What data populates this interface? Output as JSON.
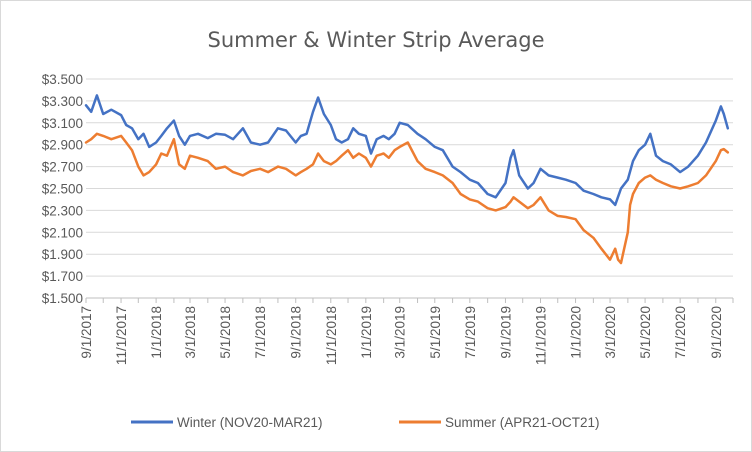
{
  "chart_data": {
    "type": "line",
    "title": "Summer & Winter Strip Average",
    "xlabel": "",
    "ylabel": "",
    "ylim": [
      1.5,
      3.5
    ],
    "y_ticks": [
      1.5,
      1.7,
      1.9,
      2.1,
      2.3,
      2.5,
      2.7,
      2.9,
      3.1,
      3.3,
      3.5
    ],
    "y_tick_labels": [
      "$1.500",
      "$1.700",
      "$1.900",
      "$2.100",
      "$2.300",
      "$2.500",
      "$2.700",
      "$2.900",
      "$3.100",
      "$3.300",
      "$3.500"
    ],
    "x_range": [
      "2017-09-01",
      "2020-10-01"
    ],
    "x_tick_labels": [
      "9/1/2017",
      "11/1/2017",
      "1/1/2018",
      "3/1/2018",
      "5/1/2018",
      "7/1/2018",
      "9/1/2018",
      "11/1/2018",
      "1/1/2019",
      "3/1/2019",
      "5/1/2019",
      "7/1/2019",
      "9/1/2019",
      "11/1/2019",
      "1/1/2020",
      "3/1/2020",
      "5/1/2020",
      "7/1/2020",
      "9/1/2020"
    ],
    "grid": true,
    "legend_position": "bottom",
    "series": [
      {
        "name": "Winter (NOV20-MAR21)",
        "color": "#4472c4",
        "points": [
          [
            "2017-09-01",
            3.26
          ],
          [
            "2017-09-10",
            3.2
          ],
          [
            "2017-09-20",
            3.35
          ],
          [
            "2017-10-01",
            3.18
          ],
          [
            "2017-10-15",
            3.22
          ],
          [
            "2017-11-01",
            3.17
          ],
          [
            "2017-11-10",
            3.08
          ],
          [
            "2017-11-20",
            3.05
          ],
          [
            "2017-12-01",
            2.95
          ],
          [
            "2017-12-10",
            3.0
          ],
          [
            "2017-12-20",
            2.88
          ],
          [
            "2018-01-01",
            2.92
          ],
          [
            "2018-01-10",
            2.98
          ],
          [
            "2018-01-20",
            3.05
          ],
          [
            "2018-02-01",
            3.12
          ],
          [
            "2018-02-10",
            2.98
          ],
          [
            "2018-02-20",
            2.9
          ],
          [
            "2018-03-01",
            2.98
          ],
          [
            "2018-03-15",
            3.0
          ],
          [
            "2018-04-01",
            2.96
          ],
          [
            "2018-04-15",
            3.0
          ],
          [
            "2018-05-01",
            2.99
          ],
          [
            "2018-05-15",
            2.95
          ],
          [
            "2018-06-01",
            3.05
          ],
          [
            "2018-06-15",
            2.92
          ],
          [
            "2018-07-01",
            2.9
          ],
          [
            "2018-07-15",
            2.92
          ],
          [
            "2018-08-01",
            3.05
          ],
          [
            "2018-08-15",
            3.03
          ],
          [
            "2018-09-01",
            2.92
          ],
          [
            "2018-09-10",
            2.98
          ],
          [
            "2018-09-20",
            3.0
          ],
          [
            "2018-10-01",
            3.2
          ],
          [
            "2018-10-10",
            3.33
          ],
          [
            "2018-10-20",
            3.18
          ],
          [
            "2018-11-01",
            3.08
          ],
          [
            "2018-11-10",
            2.95
          ],
          [
            "2018-11-20",
            2.92
          ],
          [
            "2018-12-01",
            2.95
          ],
          [
            "2018-12-10",
            3.05
          ],
          [
            "2018-12-20",
            3.0
          ],
          [
            "2019-01-01",
            2.98
          ],
          [
            "2019-01-10",
            2.82
          ],
          [
            "2019-01-20",
            2.95
          ],
          [
            "2019-02-01",
            2.98
          ],
          [
            "2019-02-10",
            2.95
          ],
          [
            "2019-02-20",
            3.0
          ],
          [
            "2019-03-01",
            3.1
          ],
          [
            "2019-03-15",
            3.08
          ],
          [
            "2019-04-01",
            3.0
          ],
          [
            "2019-04-15",
            2.95
          ],
          [
            "2019-05-01",
            2.88
          ],
          [
            "2019-05-15",
            2.85
          ],
          [
            "2019-06-01",
            2.7
          ],
          [
            "2019-06-15",
            2.65
          ],
          [
            "2019-07-01",
            2.58
          ],
          [
            "2019-07-15",
            2.55
          ],
          [
            "2019-08-01",
            2.45
          ],
          [
            "2019-08-15",
            2.42
          ],
          [
            "2019-09-01",
            2.55
          ],
          [
            "2019-09-10",
            2.78
          ],
          [
            "2019-09-15",
            2.85
          ],
          [
            "2019-09-25",
            2.62
          ],
          [
            "2019-10-10",
            2.5
          ],
          [
            "2019-10-20",
            2.55
          ],
          [
            "2019-11-01",
            2.68
          ],
          [
            "2019-11-15",
            2.62
          ],
          [
            "2019-12-01",
            2.6
          ],
          [
            "2019-12-15",
            2.58
          ],
          [
            "2020-01-01",
            2.55
          ],
          [
            "2020-01-15",
            2.48
          ],
          [
            "2020-02-01",
            2.45
          ],
          [
            "2020-02-15",
            2.42
          ],
          [
            "2020-03-01",
            2.4
          ],
          [
            "2020-03-10",
            2.35
          ],
          [
            "2020-03-20",
            2.5
          ],
          [
            "2020-04-01",
            2.58
          ],
          [
            "2020-04-10",
            2.75
          ],
          [
            "2020-04-20",
            2.85
          ],
          [
            "2020-05-01",
            2.9
          ],
          [
            "2020-05-10",
            3.0
          ],
          [
            "2020-05-20",
            2.8
          ],
          [
            "2020-06-01",
            2.75
          ],
          [
            "2020-06-15",
            2.72
          ],
          [
            "2020-07-01",
            2.65
          ],
          [
            "2020-07-15",
            2.7
          ],
          [
            "2020-08-01",
            2.8
          ],
          [
            "2020-08-15",
            2.92
          ],
          [
            "2020-09-01",
            3.12
          ],
          [
            "2020-09-10",
            3.25
          ],
          [
            "2020-09-15",
            3.18
          ],
          [
            "2020-09-22",
            3.05
          ]
        ]
      },
      {
        "name": "Summer  (APR21-OCT21)",
        "color": "#ed7d31",
        "points": [
          [
            "2017-09-01",
            2.92
          ],
          [
            "2017-09-10",
            2.95
          ],
          [
            "2017-09-20",
            3.0
          ],
          [
            "2017-10-01",
            2.98
          ],
          [
            "2017-10-15",
            2.95
          ],
          [
            "2017-11-01",
            2.98
          ],
          [
            "2017-11-10",
            2.92
          ],
          [
            "2017-11-20",
            2.85
          ],
          [
            "2017-12-01",
            2.7
          ],
          [
            "2017-12-10",
            2.62
          ],
          [
            "2017-12-20",
            2.65
          ],
          [
            "2018-01-01",
            2.72
          ],
          [
            "2018-01-10",
            2.82
          ],
          [
            "2018-01-20",
            2.8
          ],
          [
            "2018-02-01",
            2.95
          ],
          [
            "2018-02-10",
            2.72
          ],
          [
            "2018-02-20",
            2.68
          ],
          [
            "2018-03-01",
            2.8
          ],
          [
            "2018-03-15",
            2.78
          ],
          [
            "2018-04-01",
            2.75
          ],
          [
            "2018-04-15",
            2.68
          ],
          [
            "2018-05-01",
            2.7
          ],
          [
            "2018-05-15",
            2.65
          ],
          [
            "2018-06-01",
            2.62
          ],
          [
            "2018-06-15",
            2.66
          ],
          [
            "2018-07-01",
            2.68
          ],
          [
            "2018-07-15",
            2.65
          ],
          [
            "2018-08-01",
            2.7
          ],
          [
            "2018-08-15",
            2.68
          ],
          [
            "2018-09-01",
            2.62
          ],
          [
            "2018-09-10",
            2.65
          ],
          [
            "2018-09-20",
            2.68
          ],
          [
            "2018-10-01",
            2.72
          ],
          [
            "2018-10-10",
            2.82
          ],
          [
            "2018-10-20",
            2.75
          ],
          [
            "2018-11-01",
            2.72
          ],
          [
            "2018-11-10",
            2.75
          ],
          [
            "2018-11-20",
            2.8
          ],
          [
            "2018-12-01",
            2.85
          ],
          [
            "2018-12-10",
            2.78
          ],
          [
            "2018-12-20",
            2.82
          ],
          [
            "2019-01-01",
            2.78
          ],
          [
            "2019-01-10",
            2.7
          ],
          [
            "2019-01-20",
            2.8
          ],
          [
            "2019-02-01",
            2.82
          ],
          [
            "2019-02-10",
            2.78
          ],
          [
            "2019-02-20",
            2.85
          ],
          [
            "2019-03-01",
            2.88
          ],
          [
            "2019-03-15",
            2.92
          ],
          [
            "2019-04-01",
            2.75
          ],
          [
            "2019-04-15",
            2.68
          ],
          [
            "2019-05-01",
            2.65
          ],
          [
            "2019-05-15",
            2.62
          ],
          [
            "2019-06-01",
            2.55
          ],
          [
            "2019-06-15",
            2.45
          ],
          [
            "2019-07-01",
            2.4
          ],
          [
            "2019-07-15",
            2.38
          ],
          [
            "2019-08-01",
            2.32
          ],
          [
            "2019-08-15",
            2.3
          ],
          [
            "2019-09-01",
            2.33
          ],
          [
            "2019-09-10",
            2.38
          ],
          [
            "2019-09-15",
            2.42
          ],
          [
            "2019-09-25",
            2.38
          ],
          [
            "2019-10-10",
            2.32
          ],
          [
            "2019-10-20",
            2.35
          ],
          [
            "2019-11-01",
            2.42
          ],
          [
            "2019-11-15",
            2.3
          ],
          [
            "2019-12-01",
            2.25
          ],
          [
            "2019-12-15",
            2.24
          ],
          [
            "2020-01-01",
            2.22
          ],
          [
            "2020-01-15",
            2.12
          ],
          [
            "2020-02-01",
            2.05
          ],
          [
            "2020-02-15",
            1.95
          ],
          [
            "2020-03-01",
            1.85
          ],
          [
            "2020-03-10",
            1.95
          ],
          [
            "2020-03-15",
            1.85
          ],
          [
            "2020-03-20",
            1.82
          ],
          [
            "2020-04-01",
            2.1
          ],
          [
            "2020-04-05",
            2.35
          ],
          [
            "2020-04-10",
            2.45
          ],
          [
            "2020-04-20",
            2.55
          ],
          [
            "2020-05-01",
            2.6
          ],
          [
            "2020-05-10",
            2.62
          ],
          [
            "2020-05-20",
            2.58
          ],
          [
            "2020-06-01",
            2.55
          ],
          [
            "2020-06-15",
            2.52
          ],
          [
            "2020-07-01",
            2.5
          ],
          [
            "2020-07-15",
            2.52
          ],
          [
            "2020-08-01",
            2.55
          ],
          [
            "2020-08-15",
            2.62
          ],
          [
            "2020-09-01",
            2.75
          ],
          [
            "2020-09-10",
            2.85
          ],
          [
            "2020-09-15",
            2.86
          ],
          [
            "2020-09-22",
            2.83
          ]
        ]
      }
    ]
  }
}
